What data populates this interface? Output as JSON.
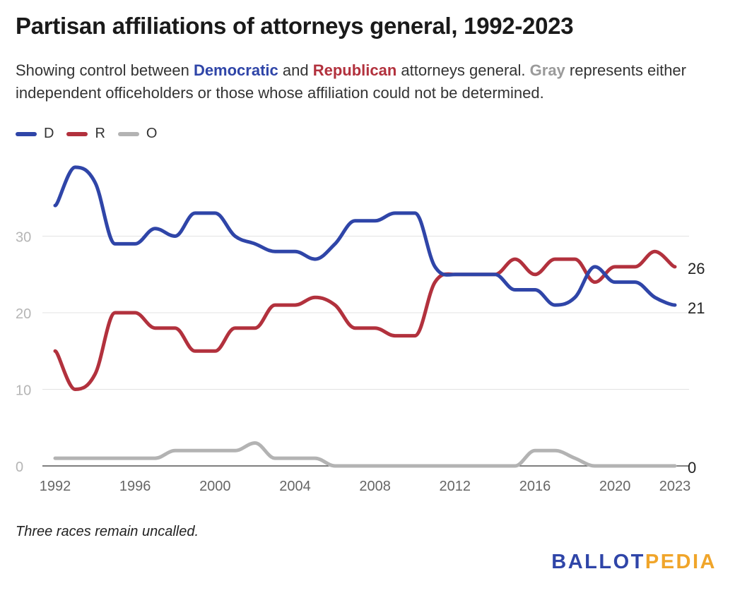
{
  "title": "Partisan affiliations of attorneys general, 1992-2023",
  "subtitle": {
    "part1": "Showing control between ",
    "dem": "Democratic",
    "part2": " and ",
    "rep": "Republican",
    "part3": " attorneys general. ",
    "gray": "Gray",
    "part4": " represents either independent officeholders or those whose affiliation could not be determined."
  },
  "legend": [
    {
      "label": "D",
      "color": "#2f45a8"
    },
    {
      "label": "R",
      "color": "#b2313d"
    },
    {
      "label": "O",
      "color": "#b3b3b3"
    }
  ],
  "note": "Three races remain uncalled.",
  "logo": {
    "part1": "BALLOT",
    "part2": "PEDIA"
  },
  "chart_data": {
    "type": "line",
    "title": "Partisan affiliations of attorneys general, 1992-2023",
    "xlabel": "",
    "ylabel": "",
    "x": [
      1992,
      1993,
      1994,
      1995,
      1996,
      1997,
      1998,
      1999,
      2000,
      2001,
      2002,
      2003,
      2004,
      2005,
      2006,
      2007,
      2008,
      2009,
      2010,
      2011,
      2012,
      2013,
      2014,
      2015,
      2016,
      2017,
      2018,
      2019,
      2020,
      2021,
      2022,
      2023
    ],
    "series": [
      {
        "name": "D",
        "color": "#2f45a8",
        "values": [
          34,
          39,
          37,
          29,
          29,
          31,
          30,
          33,
          33,
          30,
          29,
          28,
          28,
          27,
          29,
          32,
          32,
          33,
          33,
          26,
          25,
          25,
          25,
          23,
          23,
          21,
          22,
          26,
          24,
          24,
          22,
          21
        ]
      },
      {
        "name": "R",
        "color": "#b2313d",
        "values": [
          15,
          10,
          12,
          20,
          20,
          18,
          18,
          15,
          15,
          18,
          18,
          21,
          21,
          22,
          21,
          18,
          18,
          17,
          17,
          24,
          25,
          25,
          25,
          27,
          25,
          27,
          27,
          24,
          26,
          26,
          28,
          26
        ]
      },
      {
        "name": "O",
        "color": "#b3b3b3",
        "values": [
          1,
          1,
          1,
          1,
          1,
          1,
          2,
          2,
          2,
          2,
          3,
          1,
          1,
          1,
          0,
          0,
          0,
          0,
          0,
          0,
          0,
          0,
          0,
          0,
          2,
          2,
          1,
          0,
          0,
          0,
          0,
          0
        ]
      }
    ],
    "end_labels": [
      "26",
      "21",
      "0"
    ],
    "y_ticks": [
      0,
      10,
      20,
      30
    ],
    "x_ticks": [
      1992,
      1996,
      2000,
      2004,
      2008,
      2012,
      2016,
      2020,
      2023
    ],
    "xlim": [
      1992,
      2023
    ],
    "ylim": [
      0,
      40
    ],
    "grid": true,
    "legend": "top-left"
  }
}
